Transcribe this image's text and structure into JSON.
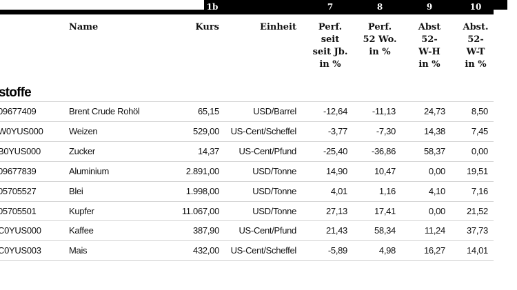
{
  "header": {
    "numbers": [
      "1b",
      "7",
      "8",
      "9",
      "10"
    ]
  },
  "table": {
    "columns": [
      [
        "Name"
      ],
      [
        "Kurs"
      ],
      [
        "Einheit"
      ],
      [
        "Perf.",
        "seit",
        "seit Jb.",
        "in %"
      ],
      [
        "Perf.",
        "52 Wo.",
        "in %"
      ],
      [
        "Abst",
        "52-",
        "W-H",
        "in %"
      ],
      [
        "Abst.",
        "52-",
        "W-T",
        "in %"
      ]
    ],
    "section": "stoffe",
    "rows": [
      [
        "09677409",
        "Brent Crude Rohöl",
        "65,15",
        "USD/Barrel",
        "-12,64",
        "-11,13",
        "24,73",
        "8,50"
      ],
      [
        "W0YUS000",
        "Weizen",
        "529,00",
        "US-Cent/Scheffel",
        "-3,77",
        "-7,30",
        "14,38",
        "7,45"
      ],
      [
        "B0YUS000",
        "Zucker",
        "14,37",
        "US-Cent/Pfund",
        "-25,40",
        "-36,86",
        "58,37",
        "0,00"
      ],
      [
        "09677839",
        "Aluminium",
        "2.891,00",
        "USD/Tonne",
        "14,90",
        "10,47",
        "0,00",
        "19,51"
      ],
      [
        "05705527",
        "Blei",
        "1.998,00",
        "USD/Tonne",
        "4,01",
        "1,16",
        "4,10",
        "7,16"
      ],
      [
        "05705501",
        "Kupfer",
        "11.067,00",
        "USD/Tonne",
        "27,13",
        "17,41",
        "0,00",
        "21,52"
      ],
      [
        "C0YUS000",
        "Kaffee",
        "387,90",
        "US-Cent/Pfund",
        "21,43",
        "58,34",
        "11,24",
        "37,73"
      ],
      [
        "C0YUS003",
        "Mais",
        "432,00",
        "US-Cent/Scheffel",
        "-5,89",
        "4,98",
        "16,27",
        "14,01"
      ]
    ]
  }
}
